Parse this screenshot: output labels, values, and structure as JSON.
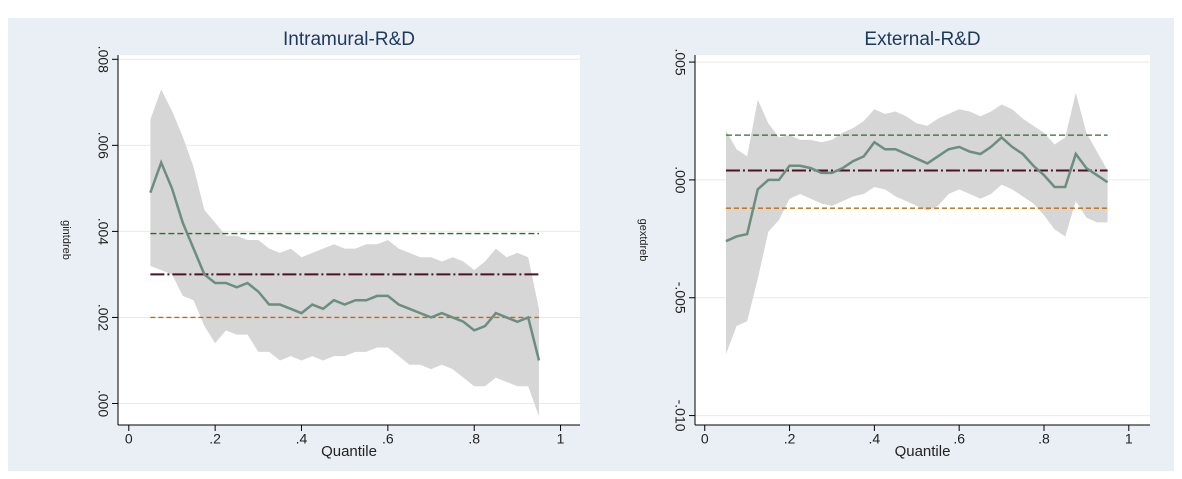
{
  "chart_data": [
    {
      "type": "line",
      "title": "Intramural-R&D",
      "xlabel": "Quantile",
      "ylabel": "gintdreb",
      "x": [
        0.05,
        0.075,
        0.1,
        0.125,
        0.15,
        0.175,
        0.2,
        0.225,
        0.25,
        0.275,
        0.3,
        0.325,
        0.35,
        0.375,
        0.4,
        0.425,
        0.45,
        0.475,
        0.5,
        0.525,
        0.55,
        0.575,
        0.6,
        0.625,
        0.65,
        0.675,
        0.7,
        0.725,
        0.75,
        0.775,
        0.8,
        0.825,
        0.85,
        0.875,
        0.9,
        0.925,
        0.95
      ],
      "series": [
        {
          "color": "#6b8e7f",
          "band_color": "#d6d6d6",
          "values": [
            0.0049,
            0.0056,
            0.005,
            0.0042,
            0.0036,
            0.003,
            0.0028,
            0.0028,
            0.0027,
            0.0028,
            0.0026,
            0.0023,
            0.0023,
            0.0022,
            0.0021,
            0.0023,
            0.0022,
            0.0024,
            0.0023,
            0.0024,
            0.0024,
            0.0025,
            0.0025,
            0.0023,
            0.0022,
            0.0021,
            0.002,
            0.0021,
            0.002,
            0.0019,
            0.0017,
            0.0018,
            0.0021,
            0.002,
            0.0019,
            0.002,
            0.001
          ],
          "upper": [
            0.0066,
            0.0073,
            0.0068,
            0.0062,
            0.0055,
            0.0045,
            0.0042,
            0.0039,
            0.0039,
            0.0038,
            0.0038,
            0.0036,
            0.0035,
            0.0036,
            0.0034,
            0.0035,
            0.0036,
            0.0037,
            0.0036,
            0.0036,
            0.0037,
            0.0037,
            0.0038,
            0.0036,
            0.0035,
            0.0034,
            0.0034,
            0.0033,
            0.0034,
            0.0033,
            0.0031,
            0.0033,
            0.0036,
            0.0034,
            0.0035,
            0.0034,
            0.0022
          ],
          "lower": [
            0.0032,
            0.0031,
            0.003,
            0.0025,
            0.0024,
            0.0018,
            0.0014,
            0.0017,
            0.0016,
            0.0016,
            0.0012,
            0.0012,
            0.001,
            0.0011,
            0.001,
            0.0011,
            0.001,
            0.0011,
            0.0011,
            0.0012,
            0.0012,
            0.0013,
            0.0013,
            0.0011,
            0.0009,
            0.0009,
            0.0008,
            0.0009,
            0.0008,
            0.0006,
            0.0004,
            0.0004,
            0.0006,
            0.0005,
            0.0004,
            0.0004,
            -0.0003
          ]
        }
      ],
      "hlines": [
        {
          "value": 0.00395,
          "color": "#2f6b2a"
        },
        {
          "value": 0.003,
          "color": "#4a1426"
        },
        {
          "value": 0.002,
          "color": "#c86a00"
        }
      ],
      "xlim": [
        -0.025,
        1.045
      ],
      "ylim": [
        -0.0005,
        0.0081
      ],
      "xticks": [
        0,
        {
          "value": 0.2,
          "label": ".2"
        },
        {
          "value": 0.4,
          "label": ".4"
        },
        {
          "value": 0.6,
          "label": ".6"
        },
        {
          "value": 0.8,
          "label": ".8"
        },
        1
      ],
      "yticks": [
        {
          "value": 0,
          "label": ".000"
        },
        {
          "value": 0.002,
          "label": ".002"
        },
        {
          "value": 0.004,
          "label": ".004"
        },
        {
          "value": 0.006,
          "label": ".006"
        },
        {
          "value": 0.008,
          "label": ".008"
        }
      ],
      "grid": true
    },
    {
      "type": "line",
      "title": "External-R&D",
      "xlabel": "Quantile",
      "ylabel": "gextdreb",
      "x": [
        0.05,
        0.075,
        0.1,
        0.125,
        0.15,
        0.175,
        0.2,
        0.225,
        0.25,
        0.275,
        0.3,
        0.325,
        0.35,
        0.375,
        0.4,
        0.425,
        0.45,
        0.475,
        0.5,
        0.525,
        0.55,
        0.575,
        0.6,
        0.625,
        0.65,
        0.675,
        0.7,
        0.725,
        0.75,
        0.775,
        0.8,
        0.825,
        0.85,
        0.875,
        0.9,
        0.925,
        0.95
      ],
      "series": [
        {
          "color": "#6b8e7f",
          "band_color": "#d6d6d6",
          "values": [
            -0.0026,
            -0.0024,
            -0.0023,
            -0.0004,
            0.0,
            0.0,
            0.0006,
            0.0006,
            0.0005,
            0.0003,
            0.0003,
            0.0005,
            0.0008,
            0.001,
            0.0016,
            0.0013,
            0.0013,
            0.0011,
            0.0009,
            0.0007,
            0.001,
            0.0013,
            0.0014,
            0.0012,
            0.0011,
            0.0014,
            0.0018,
            0.0014,
            0.0011,
            0.0006,
            0.0002,
            -0.0003,
            -0.0003,
            0.0011,
            0.0005,
            0.0002,
            -0.0001
          ],
          "upper": [
            0.0021,
            0.0013,
            0.001,
            0.0034,
            0.0024,
            0.0018,
            0.0019,
            0.0017,
            0.0017,
            0.0016,
            0.0017,
            0.002,
            0.0022,
            0.0025,
            0.003,
            0.0028,
            0.0029,
            0.0027,
            0.0024,
            0.0023,
            0.0026,
            0.0028,
            0.003,
            0.0029,
            0.0027,
            0.0029,
            0.0032,
            0.003,
            0.0026,
            0.0023,
            0.002,
            0.0015,
            0.0018,
            0.0037,
            0.002,
            0.0012,
            0.0004
          ],
          "lower": [
            -0.0074,
            -0.0062,
            -0.006,
            -0.0042,
            -0.0022,
            -0.0017,
            -0.0008,
            -0.0006,
            -0.0008,
            -0.001,
            -0.0011,
            -0.0009,
            -0.0007,
            -0.0006,
            -0.0003,
            -0.0004,
            -0.0007,
            -0.0009,
            -0.0011,
            -0.0013,
            -0.0011,
            -0.0006,
            -0.0004,
            -0.0006,
            -0.0008,
            -0.0006,
            -0.0002,
            -0.0004,
            -0.0007,
            -0.001,
            -0.0015,
            -0.0021,
            -0.0024,
            -0.0009,
            -0.0016,
            -0.0018,
            -0.0018
          ]
        }
      ],
      "hlines": [
        {
          "value": 0.0019,
          "color": "#2f6b2a"
        },
        {
          "value": 0.0004,
          "color": "#4a1426"
        },
        {
          "value": -0.0012,
          "color": "#c86a00"
        }
      ],
      "xlim": [
        -0.023,
        1.05
      ],
      "ylim": [
        -0.0104,
        0.0053
      ],
      "xticks": [
        0,
        {
          "value": 0.2,
          "label": ".2"
        },
        {
          "value": 0.4,
          "label": ".4"
        },
        {
          "value": 0.6,
          "label": ".6"
        },
        {
          "value": 0.8,
          "label": ".8"
        },
        1
      ],
      "yticks": [
        {
          "value": -0.01,
          "label": "-.010"
        },
        {
          "value": -0.005,
          "label": "-.005"
        },
        {
          "value": 0,
          "label": ".000"
        },
        {
          "value": 0.005,
          "label": ".005"
        }
      ],
      "grid": true
    }
  ]
}
